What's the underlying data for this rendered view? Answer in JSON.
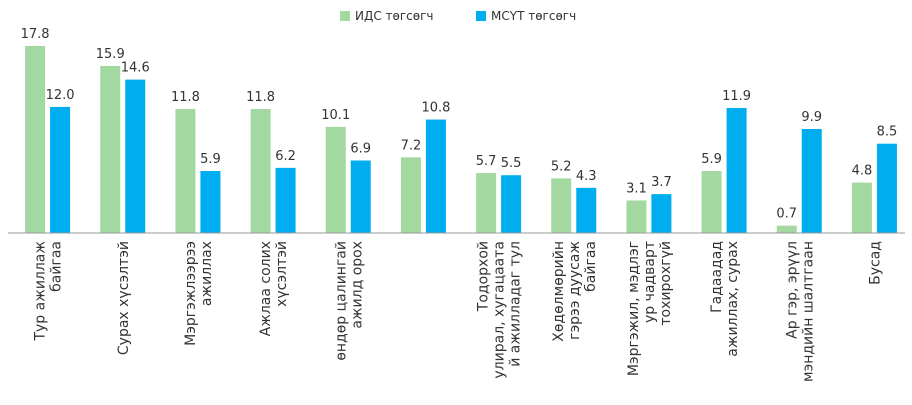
{
  "chart_data": {
    "type": "bar",
    "categories": [
      [
        "Тур ажиллаж",
        "байгаа"
      ],
      [
        "Сурах хүсэлтэй"
      ],
      [
        "Мэргэжлээрээ",
        "ажиллах"
      ],
      [
        "Ажлаа солих",
        "хүсэлтэй"
      ],
      [
        "өндөр цалингай",
        "ажилд орох"
      ],
      null,
      [
        "Тодорхой",
        "улирал, хугацаата",
        "й ажилладаг тул"
      ],
      [
        "Хөдөлмөрийн",
        "гэрээ дуусаж",
        "байгаа"
      ],
      [
        "Мэргэжил, мэдлэг",
        "ур чадварт",
        "тохирохгүй"
      ],
      [
        "Гадаадад",
        "ажиллах, сурах"
      ],
      [
        "Ар гэр, эрүүл",
        "мэндийн шалтгаан"
      ],
      [
        "Бусад"
      ]
    ],
    "series": [
      {
        "name": "ИДС төгсөгч",
        "color": "#a3d9a0",
        "values": [
          17.8,
          15.9,
          11.8,
          11.8,
          10.1,
          7.2,
          5.7,
          5.2,
          3.1,
          5.9,
          0.7,
          4.8
        ],
        "value_labels": [
          "17.8",
          "15.9",
          "11.8",
          "11.8",
          "10.1",
          "7.2",
          "5.7",
          "5.2",
          "3.1",
          "5.9",
          "0.7",
          "4.8"
        ]
      },
      {
        "name": "МСҮТ төгсөгч",
        "color": "#00aeef",
        "values": [
          12.0,
          14.6,
          5.9,
          6.2,
          6.9,
          10.8,
          5.5,
          4.3,
          3.7,
          11.9,
          9.9,
          8.5
        ],
        "value_labels": [
          "12.0",
          "14.6",
          "5.9",
          "6.2",
          "6.9",
          "10.8",
          "5.5",
          "4.3",
          "3.7",
          "11.9",
          "9.9",
          "8.5"
        ]
      }
    ],
    "legend": "top"
  }
}
